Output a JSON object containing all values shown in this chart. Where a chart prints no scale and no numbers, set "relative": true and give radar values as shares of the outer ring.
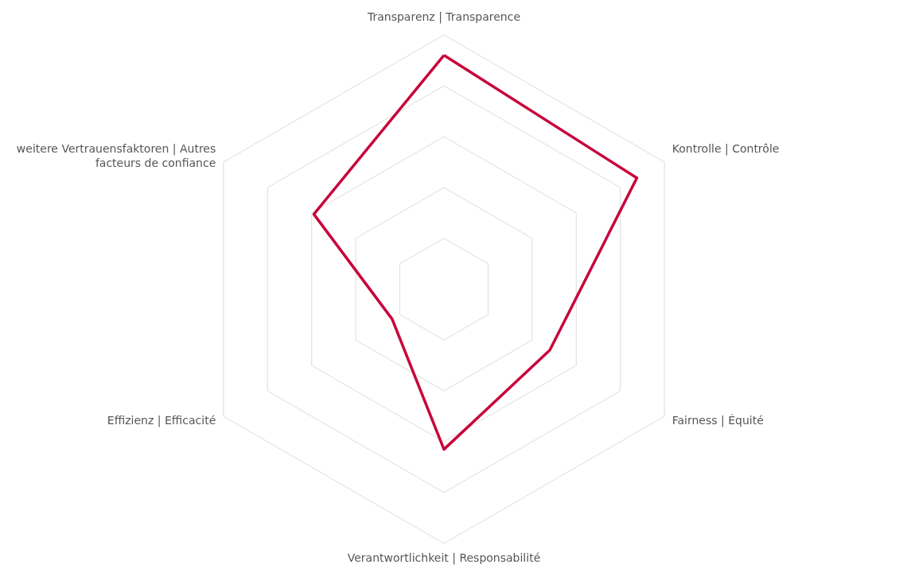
{
  "chart_data": {
    "type": "radar",
    "relative": true,
    "grid": true,
    "categories": [
      "Transparenz | Transparence",
      "Kontrolle | Contrôle",
      "Fairness | Équité",
      "Verantwortlichkeit | Responsabilité",
      "Effizienz | Efficacité",
      "weitere Vertrauensfaktoren | Autres facteurs de confiance"
    ],
    "series": [
      {
        "color": "#c8053c",
        "values": [
          0.92,
          0.875,
          0.48,
          0.63,
          0.235,
          0.59
        ]
      }
    ]
  }
}
